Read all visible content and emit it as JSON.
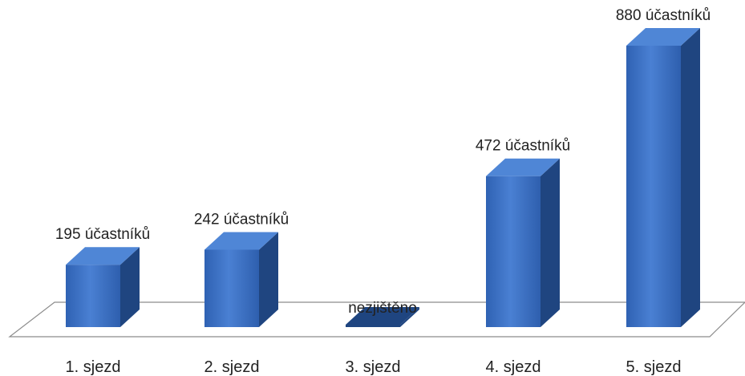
{
  "chart_data": {
    "type": "bar",
    "categories": [
      "1. sjezd",
      "2. sjezd",
      "3. sjezd",
      "4. sjezd",
      "5. sjezd"
    ],
    "values": [
      195,
      242,
      0,
      472,
      880
    ],
    "data_labels": [
      "195 účastníků",
      "242 účastníků",
      "nezjištěno",
      "472 účastníků",
      "880 účastníků"
    ],
    "title": "",
    "xlabel": "",
    "ylabel": "",
    "ylim": [
      0,
      880
    ],
    "grid": false,
    "legend": "none",
    "colors": {
      "bar_front": "#3a6fc4",
      "bar_top": "#4f86d6",
      "bar_side": "#1f4580",
      "floor_stroke": "#8c8c8c"
    }
  }
}
